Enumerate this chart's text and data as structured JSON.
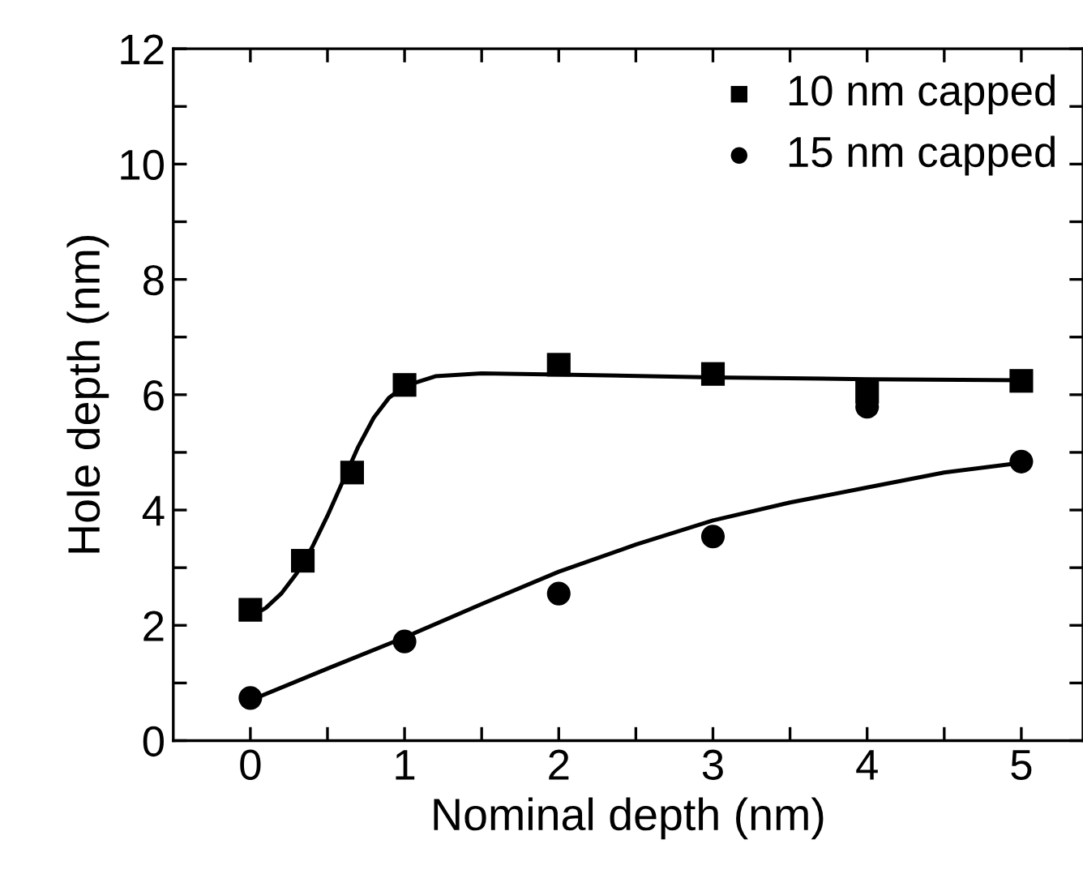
{
  "chart_data": {
    "type": "scatter",
    "xlabel": "Nominal depth (nm)",
    "ylabel": "Hole depth (nm)",
    "xlim": [
      -0.5,
      5.4
    ],
    "ylim": [
      0,
      12
    ],
    "xticks": [
      0,
      {
        "value": 0.5,
        "label": null
      },
      1,
      {
        "value": 1.5,
        "label": null
      },
      2,
      {
        "value": 2.5,
        "label": null
      },
      3,
      {
        "value": 3.5,
        "label": null
      },
      4,
      {
        "value": 4.5,
        "label": null
      },
      5
    ],
    "yticks": [
      0,
      {
        "value": 1,
        "label": null
      },
      2,
      {
        "value": 3,
        "label": null
      },
      4,
      {
        "value": 5,
        "label": null
      },
      6,
      {
        "value": 7,
        "label": null
      },
      8,
      {
        "value": 9,
        "label": null
      },
      10,
      {
        "value": 11,
        "label": null
      },
      12
    ],
    "grid": false,
    "legend": "top right",
    "series": [
      {
        "name": "10 nm capped",
        "marker": "square",
        "color": "#000000",
        "x": [
          0,
          0.34,
          0.66,
          1,
          2,
          3,
          4,
          5
        ],
        "values": [
          2.27,
          3.12,
          4.65,
          6.17,
          6.52,
          6.36,
          6.05,
          6.24
        ]
      },
      {
        "name": "15 nm capped",
        "marker": "circle",
        "color": "#000000",
        "x": [
          0,
          1,
          2,
          3,
          4,
          5
        ],
        "values": [
          0.74,
          1.72,
          2.55,
          3.54,
          5.79,
          4.84
        ]
      },
      {
        "type": "line",
        "marker": "none",
        "line_style": "solid",
        "color": "#000000",
        "x": [
          0,
          0.1,
          0.2,
          0.3,
          0.4,
          0.5,
          0.6,
          0.7,
          0.8,
          0.9,
          1.0,
          1.2,
          1.5,
          2,
          3,
          4,
          5
        ],
        "values": [
          2.15,
          2.3,
          2.55,
          2.9,
          3.35,
          3.9,
          4.5,
          5.1,
          5.6,
          5.95,
          6.15,
          6.32,
          6.37,
          6.35,
          6.3,
          6.27,
          6.25
        ]
      },
      {
        "type": "line",
        "marker": "none",
        "line_style": "solid",
        "color": "#000000",
        "x": [
          0,
          0.5,
          1,
          1.5,
          2,
          2.5,
          3,
          3.5,
          4,
          4.5,
          5
        ],
        "values": [
          0.7,
          1.25,
          1.79,
          2.37,
          2.93,
          3.4,
          3.82,
          4.13,
          4.39,
          4.65,
          4.82
        ]
      }
    ]
  }
}
